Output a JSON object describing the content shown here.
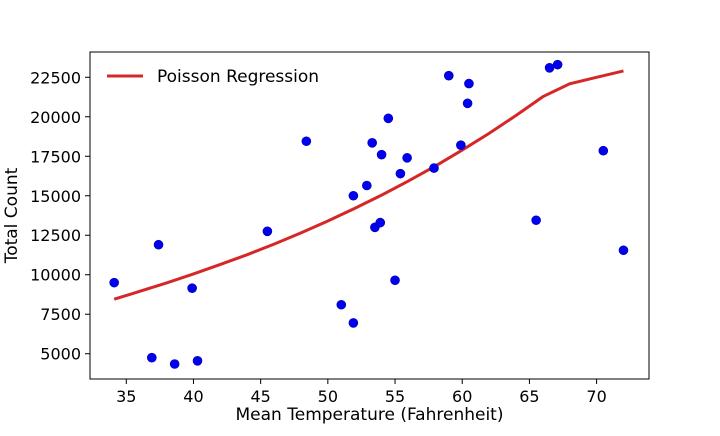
{
  "chart_data": {
    "type": "scatter",
    "title": "",
    "xlabel": "Mean Temperature (Fahrenheit)",
    "ylabel": "Total Count",
    "xlim": [
      32.3,
      73.9
    ],
    "ylim": [
      3400,
      24100
    ],
    "xticks": [
      35,
      40,
      45,
      50,
      55,
      60,
      65,
      70
    ],
    "yticks": [
      5000,
      7500,
      10000,
      12500,
      15000,
      17500,
      20000,
      22500
    ],
    "grid": false,
    "legend_position": "top-left",
    "series": [
      {
        "kind": "scatter",
        "color": "#0000ee",
        "points": [
          {
            "x": 34.1,
            "y": 9500
          },
          {
            "x": 36.9,
            "y": 4750
          },
          {
            "x": 37.4,
            "y": 11900
          },
          {
            "x": 38.6,
            "y": 4350
          },
          {
            "x": 39.9,
            "y": 9150
          },
          {
            "x": 40.3,
            "y": 4550
          },
          {
            "x": 45.5,
            "y": 12750
          },
          {
            "x": 48.4,
            "y": 18450
          },
          {
            "x": 51.0,
            "y": 8100
          },
          {
            "x": 51.9,
            "y": 6950
          },
          {
            "x": 51.9,
            "y": 15000
          },
          {
            "x": 52.9,
            "y": 15650
          },
          {
            "x": 53.3,
            "y": 18350
          },
          {
            "x": 53.5,
            "y": 13000
          },
          {
            "x": 53.9,
            "y": 13300
          },
          {
            "x": 54.0,
            "y": 17600
          },
          {
            "x": 54.5,
            "y": 19900
          },
          {
            "x": 55.0,
            "y": 9650
          },
          {
            "x": 55.4,
            "y": 16400
          },
          {
            "x": 55.9,
            "y": 17400
          },
          {
            "x": 57.9,
            "y": 16750
          },
          {
            "x": 59.0,
            "y": 22600
          },
          {
            "x": 59.9,
            "y": 18200
          },
          {
            "x": 60.4,
            "y": 20850
          },
          {
            "x": 60.5,
            "y": 22100
          },
          {
            "x": 65.5,
            "y": 13450
          },
          {
            "x": 66.5,
            "y": 23100
          },
          {
            "x": 67.1,
            "y": 23300
          },
          {
            "x": 70.5,
            "y": 17850
          },
          {
            "x": 72.0,
            "y": 11550
          }
        ]
      },
      {
        "kind": "line",
        "name": "Poisson Regression",
        "color": "#d62728",
        "x": [
          34.1,
          36,
          38,
          40,
          42,
          44,
          46,
          48,
          50,
          52,
          54,
          56,
          58,
          60,
          62,
          64,
          66,
          68,
          70,
          72
        ],
        "y": [
          8450,
          8950,
          9480,
          10050,
          10650,
          11270,
          11940,
          12650,
          13400,
          14200,
          15040,
          15940,
          16880,
          17890,
          18950,
          20080,
          21270,
          22090,
          22500,
          22900
        ]
      }
    ]
  }
}
